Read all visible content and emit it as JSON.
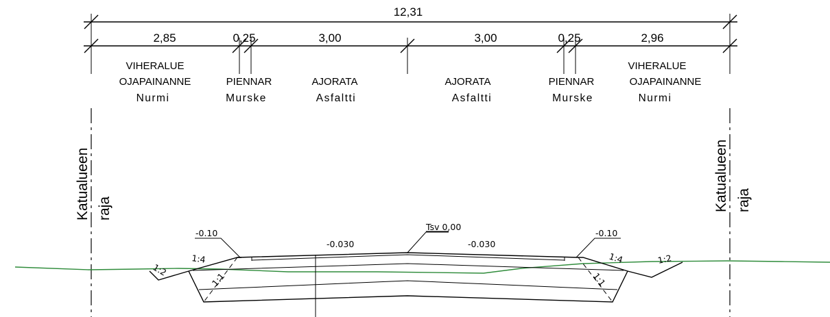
{
  "dimensions": {
    "total": "12,31",
    "segments": [
      "2,85",
      "0,25",
      "3,00",
      "3,00",
      "0,25",
      "2,96"
    ]
  },
  "zones": {
    "left_green": {
      "line1": "VIHERALUE",
      "line2": "OJAPAINANNE",
      "line3": "Nurmi"
    },
    "left_shoulder": {
      "line1": "PIENNAR",
      "line2": "Murske"
    },
    "left_lane": {
      "line1": "AJORATA",
      "line2": "Asfaltti"
    },
    "right_lane": {
      "line1": "AJORATA",
      "line2": "Asfaltti"
    },
    "right_shoulder": {
      "line1": "PIENNAR",
      "line2": "Murske"
    },
    "right_green": {
      "line1": "VIHERALUE",
      "line2": "OJAPAINANNE",
      "line3": "Nurmi"
    }
  },
  "boundary": {
    "line1": "Katualueen",
    "line2": "raja"
  },
  "section_labels": {
    "center_level": "Tsv 0,00",
    "left_edge_level": "-0.10",
    "right_edge_level": "-0.10",
    "left_crossfall": "-0.030",
    "right_crossfall": "-0.030",
    "left_ditch_slope": "1:2",
    "left_fill_slope": "1:4",
    "left_inner_slope": "1:1",
    "right_fill_slope": "1:4",
    "right_ditch_slope": "1:2",
    "right_inner_slope": "1:1"
  },
  "colors": {
    "lines": "#000000",
    "ground_line": "#2e8b3a"
  }
}
